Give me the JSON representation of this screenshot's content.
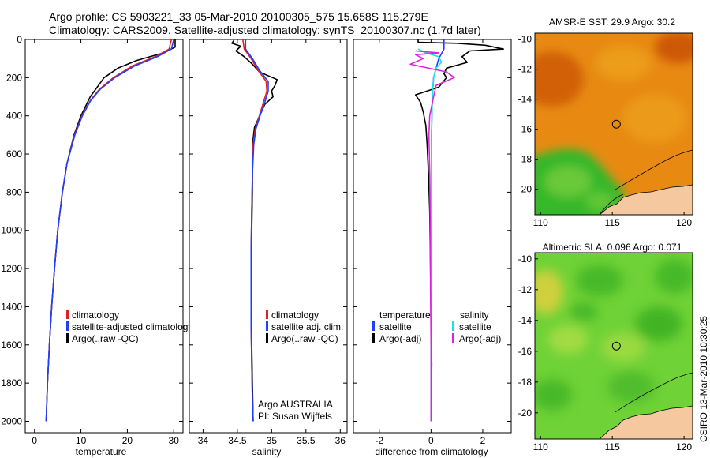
{
  "header": {
    "line1": "Argo profile: CS 5903221_33 05-Mar-2010 20100305_575 15.658S 115.279E",
    "line2": "Climatology: CARS2009. Satellite-adjusted climatology: synTS_20100307.nc (1.7d later)"
  },
  "side_stamp": "CSIRO 13-Mar-2010 10:30:25",
  "chart_data": [
    {
      "type": "line",
      "id": "temperature",
      "xlabel": "temperature",
      "ylabel": "",
      "xlim": [
        -2,
        32
      ],
      "ylim": [
        0,
        2060
      ],
      "y_reversed": true,
      "xticks": [
        0,
        10,
        20,
        30
      ],
      "yticks": [
        0,
        200,
        400,
        600,
        800,
        1000,
        1200,
        1400,
        1600,
        1800,
        2000
      ],
      "legend": [
        {
          "label": "climatology",
          "color": "#e02020"
        },
        {
          "label": "satellite-adjusted climatology",
          "color": "#1f3fff"
        },
        {
          "label": "Argo(..raw -QC)",
          "color": "#000000"
        }
      ],
      "series": [
        {
          "name": "Argo(..raw -QC)",
          "color": "#000000",
          "points": [
            [
              30.3,
              0
            ],
            [
              30.3,
              40
            ],
            [
              27.8,
              70
            ],
            [
              22,
              110
            ],
            [
              18,
              150
            ],
            [
              15,
              200
            ],
            [
              13.5,
              250
            ],
            [
              12,
              300
            ],
            [
              10,
              400
            ],
            [
              8.5,
              500
            ],
            [
              7,
              650
            ],
            [
              6,
              800
            ],
            [
              5,
              1000
            ],
            [
              4.3,
              1200
            ],
            [
              3.7,
              1400
            ],
            [
              3.2,
              1600
            ],
            [
              2.8,
              1800
            ],
            [
              2.5,
              2000
            ]
          ]
        },
        {
          "name": "climatology",
          "color": "#e02020",
          "points": [
            [
              29.5,
              0
            ],
            [
              29,
              50
            ],
            [
              26,
              90
            ],
            [
              21,
              140
            ],
            [
              17,
              200
            ],
            [
              14,
              260
            ],
            [
              12,
              320
            ],
            [
              10.2,
              400
            ],
            [
              8.6,
              500
            ],
            [
              7,
              650
            ],
            [
              6,
              800
            ],
            [
              5,
              1000
            ],
            [
              4.3,
              1200
            ],
            [
              3.7,
              1400
            ],
            [
              3.2,
              1600
            ],
            [
              2.8,
              1800
            ],
            [
              2.5,
              2000
            ]
          ]
        },
        {
          "name": "satellite-adjusted climatology",
          "color": "#1f3fff",
          "points": [
            [
              30,
              0
            ],
            [
              29.5,
              50
            ],
            [
              26.5,
              90
            ],
            [
              21.5,
              140
            ],
            [
              17.3,
              200
            ],
            [
              14.2,
              260
            ],
            [
              12.1,
              320
            ],
            [
              10.3,
              400
            ],
            [
              8.7,
              500
            ],
            [
              7,
              650
            ],
            [
              6,
              800
            ],
            [
              5,
              1000
            ],
            [
              4.3,
              1200
            ],
            [
              3.7,
              1400
            ],
            [
              3.2,
              1600
            ],
            [
              2.8,
              1800
            ],
            [
              2.5,
              2000
            ]
          ]
        }
      ]
    },
    {
      "type": "line",
      "id": "salinity",
      "xlabel": "salinity",
      "ylabel": "",
      "xlim": [
        33.8,
        36.1
      ],
      "ylim": [
        0,
        2060
      ],
      "y_reversed": true,
      "xticks": [
        34,
        34.5,
        35,
        35.5,
        36
      ],
      "legend": [
        {
          "label": "climatology",
          "color": "#e02020"
        },
        {
          "label": "satellite adj. clim.",
          "color": "#1f3fff"
        },
        {
          "label": "Argo(..raw -QC)",
          "color": "#000000"
        }
      ],
      "annotation": [
        "Argo AUSTRALIA",
        "PI: Susan Wijffels"
      ],
      "series": [
        {
          "name": "Argo(..raw -QC)",
          "color": "#000000",
          "points": [
            [
              34.45,
              5
            ],
            [
              34.42,
              20
            ],
            [
              34.55,
              35
            ],
            [
              34.48,
              60
            ],
            [
              34.6,
              90
            ],
            [
              34.72,
              130
            ],
            [
              34.82,
              170
            ],
            [
              35.08,
              210
            ],
            [
              35.05,
              240
            ],
            [
              35.0,
              270
            ],
            [
              35.02,
              300
            ],
            [
              34.9,
              340
            ],
            [
              34.85,
              380
            ],
            [
              34.8,
              420
            ],
            [
              34.75,
              460
            ],
            [
              34.73,
              520
            ],
            [
              34.72,
              650
            ],
            [
              34.72,
              800
            ],
            [
              34.71,
              1000
            ],
            [
              34.7,
              1200
            ],
            [
              34.7,
              1400
            ],
            [
              34.71,
              1600
            ],
            [
              34.72,
              1800
            ],
            [
              34.73,
              2000
            ]
          ]
        },
        {
          "name": "climatology",
          "color": "#e02020",
          "points": [
            [
              34.58,
              0
            ],
            [
              34.6,
              50
            ],
            [
              34.7,
              100
            ],
            [
              34.8,
              160
            ],
            [
              34.92,
              220
            ],
            [
              34.93,
              270
            ],
            [
              34.88,
              330
            ],
            [
              34.82,
              400
            ],
            [
              34.76,
              470
            ],
            [
              34.73,
              550
            ],
            [
              34.72,
              700
            ],
            [
              34.71,
              900
            ],
            [
              34.7,
              1100
            ],
            [
              34.7,
              1300
            ],
            [
              34.7,
              1500
            ],
            [
              34.71,
              1700
            ],
            [
              34.72,
              1900
            ],
            [
              34.73,
              2000
            ]
          ]
        },
        {
          "name": "satellite adj. clim.",
          "color": "#1f3fff",
          "points": [
            [
              34.62,
              0
            ],
            [
              34.62,
              50
            ],
            [
              34.72,
              100
            ],
            [
              34.82,
              160
            ],
            [
              34.95,
              220
            ],
            [
              34.95,
              270
            ],
            [
              34.9,
              330
            ],
            [
              34.83,
              400
            ],
            [
              34.77,
              470
            ],
            [
              34.74,
              550
            ],
            [
              34.72,
              700
            ],
            [
              34.71,
              900
            ],
            [
              34.7,
              1100
            ],
            [
              34.7,
              1300
            ],
            [
              34.7,
              1500
            ],
            [
              34.71,
              1700
            ],
            [
              34.72,
              1900
            ],
            [
              34.73,
              2000
            ]
          ]
        }
      ]
    },
    {
      "type": "line",
      "id": "difference",
      "xlabel": "difference from climatology",
      "ylabel": "",
      "xlim": [
        -3,
        3.1
      ],
      "ylim": [
        0,
        2060
      ],
      "y_reversed": true,
      "xticks": [
        -2,
        0,
        2
      ],
      "legend_headers": [
        "temperature",
        "salinity"
      ],
      "legend": [
        {
          "label": "satellite",
          "color": "#1f3fff"
        },
        {
          "label": "Argo(-adj)",
          "color": "#000000"
        },
        {
          "label": "satellite",
          "color": "#22e0e0"
        },
        {
          "label": "Argo(-adj)",
          "color": "#e020e0"
        }
      ],
      "series": [
        {
          "name": "temperature Argo(-adj)",
          "color": "#000000",
          "points": [
            [
              -0.5,
              0
            ],
            [
              -0.5,
              15
            ],
            [
              1,
              20
            ],
            [
              2.1,
              30
            ],
            [
              2.8,
              50
            ],
            [
              1.5,
              60
            ],
            [
              1.2,
              90
            ],
            [
              1.4,
              120
            ],
            [
              0.6,
              150
            ],
            [
              0.5,
              180
            ],
            [
              0.6,
              200
            ],
            [
              0.3,
              250
            ],
            [
              -0.6,
              290
            ],
            [
              -0.4,
              330
            ],
            [
              -0.3,
              380
            ],
            [
              -0.2,
              450
            ],
            [
              -0.15,
              550
            ],
            [
              -0.1,
              700
            ],
            [
              -0.05,
              900
            ],
            [
              -0.02,
              1200
            ],
            [
              0,
              1500
            ],
            [
              0.03,
              1700
            ],
            [
              0,
              2000
            ]
          ]
        },
        {
          "name": "temperature satellite",
          "color": "#1f3fff",
          "points": [
            [
              0.5,
              0
            ],
            [
              0.5,
              50
            ],
            [
              0.3,
              100
            ],
            [
              0.1,
              200
            ],
            [
              0.05,
              300
            ],
            [
              0.02,
              500
            ],
            [
              0,
              1000
            ],
            [
              0,
              2000
            ]
          ]
        },
        {
          "name": "salinity satellite",
          "color": "#22e0e0",
          "points": [
            [
              -0.5,
              50
            ],
            [
              -0.2,
              70
            ],
            [
              0.3,
              90
            ],
            [
              0.4,
              120
            ],
            [
              0.2,
              150
            ],
            [
              0.1,
              200
            ],
            [
              0.05,
              300
            ],
            [
              0.02,
              500
            ],
            [
              0,
              1000
            ],
            [
              0,
              2000
            ]
          ]
        },
        {
          "name": "salinity Argo(-adj)",
          "color": "#e020e0",
          "points": [
            [
              -0.6,
              60
            ],
            [
              0.3,
              70
            ],
            [
              -0.6,
              80
            ],
            [
              -0.3,
              100
            ],
            [
              -0.8,
              130
            ],
            [
              0.6,
              170
            ],
            [
              0.9,
              200
            ],
            [
              0.2,
              240
            ],
            [
              0.1,
              300
            ],
            [
              -0.05,
              400
            ],
            [
              -0.08,
              500
            ],
            [
              -0.05,
              700
            ],
            [
              -0.03,
              1000
            ],
            [
              -0.02,
              1300
            ],
            [
              0,
              1600
            ],
            [
              0,
              2000
            ]
          ]
        }
      ]
    },
    {
      "type": "heatmap",
      "id": "sst_map",
      "title": "AMSR-E SST: 29.9 Argo: 30.2",
      "xlim": [
        109.6,
        120.6
      ],
      "ylim": [
        -21.7,
        -9.6
      ],
      "xticks": [
        110,
        115,
        120
      ],
      "yticks": [
        -10,
        -12,
        -14,
        -16,
        -18,
        -20
      ],
      "marker": {
        "lon": 115.279,
        "lat": -15.658
      },
      "colors": {
        "warm": "#e88a12",
        "hot": "#c24408",
        "mid": "#f0b020",
        "cool": "#36b82a",
        "cooler": "#7fd040",
        "land": "#f5c8a0"
      }
    },
    {
      "type": "heatmap",
      "id": "sla_map",
      "title": "Altimetric SLA: 0.096 Argo: 0.071",
      "xlim": [
        109.6,
        120.6
      ],
      "ylim": [
        -21.7,
        -9.6
      ],
      "xticks": [
        110,
        115,
        120
      ],
      "yticks": [
        -10,
        -12,
        -14,
        -16,
        -18,
        -20
      ],
      "marker": {
        "lon": 115.279,
        "lat": -15.658
      },
      "colors": {
        "base": "#6fd236",
        "dark": "#2fa81e",
        "light": "#b8e048",
        "yellow": "#e8d040",
        "land": "#f5c8a0"
      }
    }
  ]
}
